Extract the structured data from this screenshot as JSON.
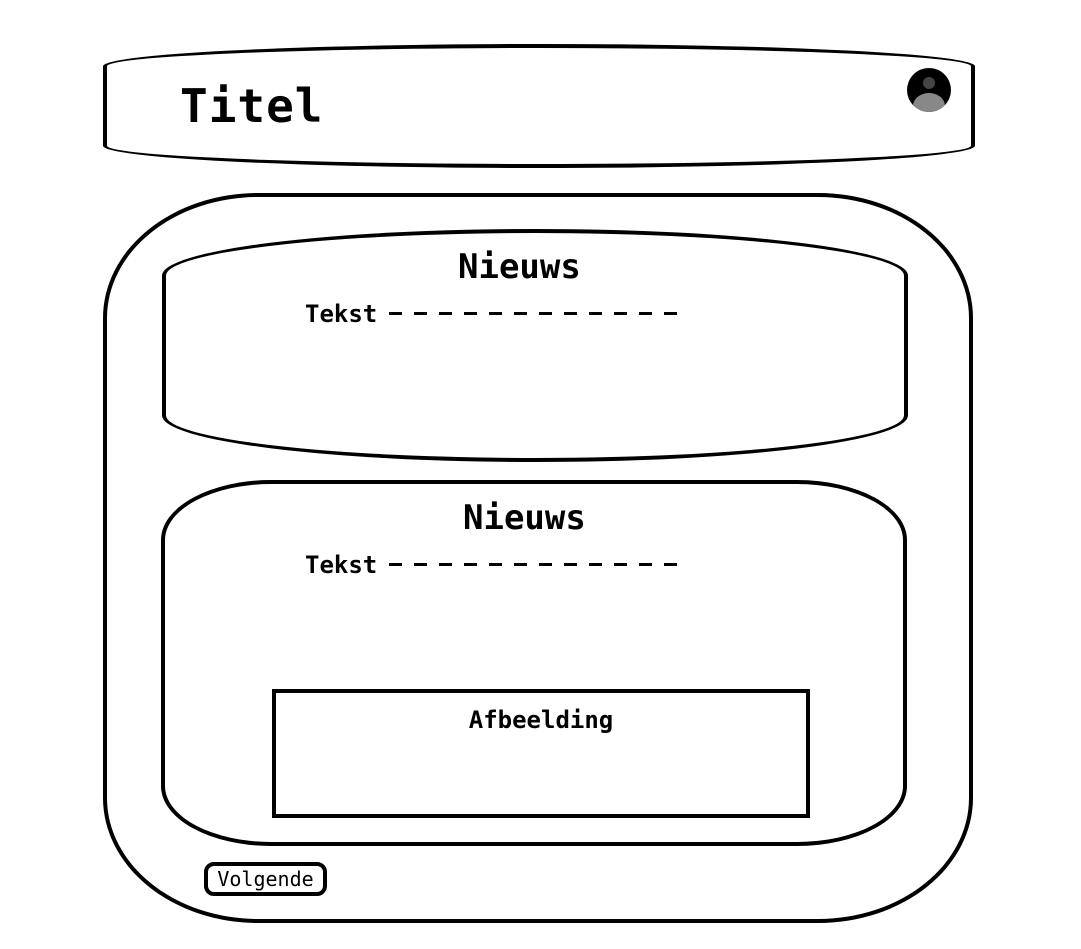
{
  "header": {
    "title": "Titel",
    "avatar_icon": "user-avatar-icon"
  },
  "news": [
    {
      "title": "Nieuws",
      "text": "Tekst"
    },
    {
      "title": "Nieuws",
      "text": "Tekst",
      "image_label": "Afbeelding"
    }
  ],
  "pagination": {
    "next_label": "Volgende"
  },
  "colors": {
    "stroke": "#000000",
    "background": "#ffffff",
    "avatar_head": "#444444",
    "avatar_body": "#888888"
  }
}
